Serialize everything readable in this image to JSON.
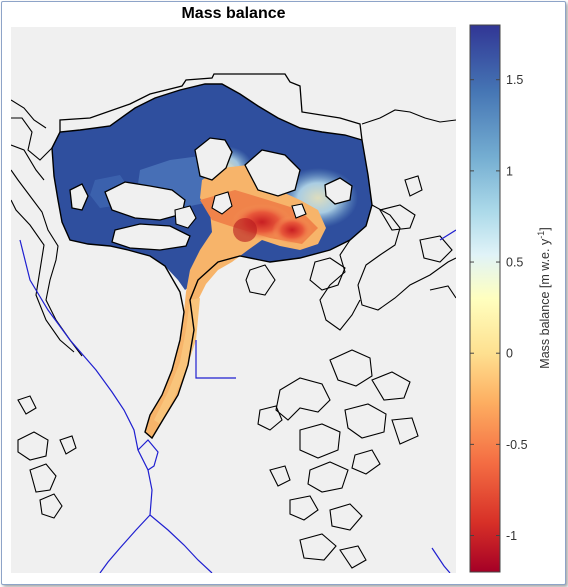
{
  "title": "Mass balance",
  "colorbar": {
    "label": "Mass balance [m w.e. y",
    "label_sup": "-1",
    "label_end": "]",
    "min": -1.2,
    "max": 1.8,
    "ticks": [
      "1.5",
      "1",
      "0.5",
      "0",
      "-0.5",
      "-1"
    ],
    "tick_values": [
      1.5,
      1,
      0.5,
      0,
      -0.5,
      -1
    ],
    "colormap": [
      "#a50026",
      "#d73027",
      "#f46d43",
      "#fdae61",
      "#fee090",
      "#ffffbf",
      "#e0f3f8",
      "#abd9e9",
      "#74add1",
      "#4575b4",
      "#313695"
    ]
  },
  "map": {
    "background": "#f0f0f0",
    "outline_color": "#000000",
    "river_color": "#1f1fd0"
  }
}
